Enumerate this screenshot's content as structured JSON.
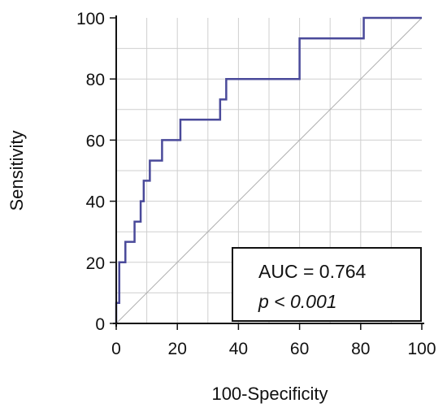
{
  "chart_data": {
    "type": "line",
    "title": "",
    "xlabel": "100-Specificity",
    "ylabel": "Sensitivity",
    "xlim": [
      0,
      100
    ],
    "ylim": [
      0,
      100
    ],
    "xticks": [
      "0",
      "20",
      "40",
      "60",
      "80",
      "100"
    ],
    "yticks": [
      "0",
      "20",
      "40",
      "60",
      "80",
      "100"
    ],
    "grid": true,
    "series": [
      {
        "x": [
          0,
          0,
          1,
          1,
          2,
          2,
          3,
          3,
          6,
          6,
          8,
          8,
          9,
          9,
          11,
          11,
          12,
          12,
          15,
          15,
          21,
          21,
          34,
          34,
          36,
          36,
          60,
          60,
          81,
          81,
          100
        ],
        "y": [
          0,
          6.7,
          6.7,
          20,
          20,
          20,
          20,
          26.7,
          26.7,
          33.3,
          33.3,
          40,
          40,
          46.7,
          46.7,
          53.3,
          53.3,
          53.3,
          53.3,
          60,
          60,
          66.7,
          66.7,
          73.3,
          73.3,
          80,
          80,
          93.3,
          93.3,
          100,
          100
        ],
        "color": "#4a4a9a"
      }
    ],
    "reference_line": {
      "x": [
        0,
        100
      ],
      "y": [
        0,
        100
      ],
      "color": "#b0b0b0"
    },
    "annotation": {
      "auc": "AUC = 0.764",
      "p": "p < 0.001"
    }
  }
}
